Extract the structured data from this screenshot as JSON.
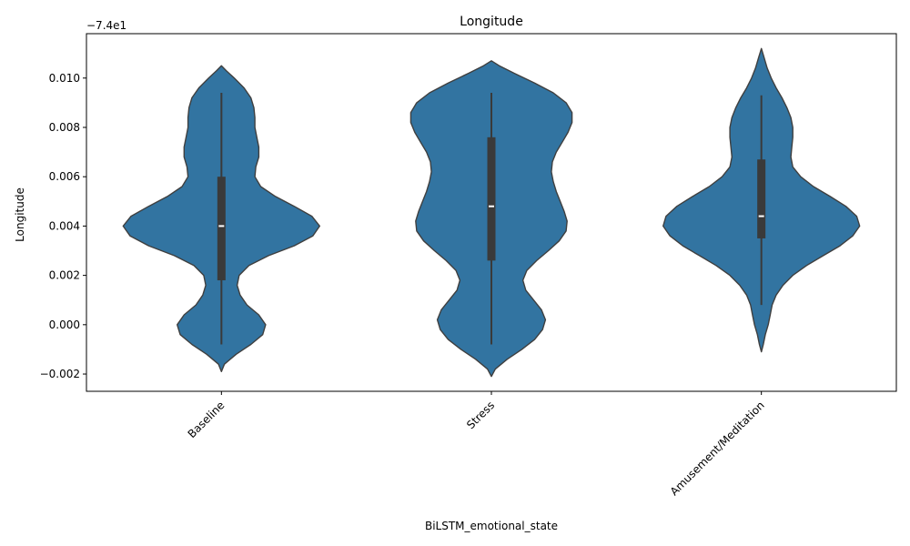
{
  "chart_data": {
    "type": "violin",
    "title": "Longitude ",
    "xlabel": "BiLSTM_emotional_state",
    "ylabel": "Longitude",
    "offset_text": "−7.4e1",
    "ylim": [
      -0.0027,
      0.0118
    ],
    "yticks": [
      -0.002,
      0.0,
      0.002,
      0.004,
      0.006,
      0.008,
      0.01
    ],
    "ytick_labels": [
      "−0.002",
      "0.000",
      "0.002",
      "0.004",
      "0.006",
      "0.008",
      "0.010"
    ],
    "categories": [
      "Baseline",
      "Stress",
      "Amusement/Meditation"
    ],
    "fill_color": "#3274a1",
    "edge_color": "#3f3f3f",
    "box_color": "#3a3a3a",
    "median_color": "#ffffff",
    "violins": [
      {
        "category": "Baseline",
        "whisker_min": -0.0008,
        "q1": 0.0018,
        "median": 0.004,
        "q3": 0.006,
        "whisker_max": 0.0094,
        "kde_min": -0.0019,
        "kde_max": 0.0105,
        "profile": [
          [
            -0.0019,
            0.0
          ],
          [
            -0.0016,
            0.03
          ],
          [
            -0.0012,
            0.15
          ],
          [
            -0.0008,
            0.3
          ],
          [
            -0.0004,
            0.42
          ],
          [
            0.0,
            0.45
          ],
          [
            0.0004,
            0.38
          ],
          [
            0.0008,
            0.26
          ],
          [
            0.0012,
            0.19
          ],
          [
            0.0016,
            0.16
          ],
          [
            0.002,
            0.18
          ],
          [
            0.0024,
            0.28
          ],
          [
            0.0028,
            0.48
          ],
          [
            0.0032,
            0.74
          ],
          [
            0.0036,
            0.93
          ],
          [
            0.004,
            1.0
          ],
          [
            0.0044,
            0.92
          ],
          [
            0.0048,
            0.74
          ],
          [
            0.0052,
            0.55
          ],
          [
            0.0056,
            0.4
          ],
          [
            0.006,
            0.34
          ],
          [
            0.0064,
            0.35
          ],
          [
            0.0068,
            0.38
          ],
          [
            0.0072,
            0.38
          ],
          [
            0.0076,
            0.36
          ],
          [
            0.008,
            0.34
          ],
          [
            0.0084,
            0.34
          ],
          [
            0.0088,
            0.33
          ],
          [
            0.0092,
            0.3
          ],
          [
            0.0096,
            0.23
          ],
          [
            0.01,
            0.13
          ],
          [
            0.0103,
            0.05
          ],
          [
            0.0105,
            0.0
          ]
        ]
      },
      {
        "category": "Stress",
        "whisker_min": -0.0008,
        "q1": 0.0026,
        "median": 0.0048,
        "q3": 0.0076,
        "whisker_max": 0.0094,
        "kde_min": -0.0021,
        "kde_max": 0.0107,
        "profile": [
          [
            -0.0021,
            0.0
          ],
          [
            -0.0018,
            0.04
          ],
          [
            -0.0014,
            0.16
          ],
          [
            -0.001,
            0.31
          ],
          [
            -0.0006,
            0.44
          ],
          [
            -0.0002,
            0.52
          ],
          [
            0.0002,
            0.55
          ],
          [
            0.0006,
            0.51
          ],
          [
            0.001,
            0.43
          ],
          [
            0.0014,
            0.35
          ],
          [
            0.0018,
            0.32
          ],
          [
            0.0022,
            0.36
          ],
          [
            0.0026,
            0.46
          ],
          [
            0.003,
            0.58
          ],
          [
            0.0034,
            0.69
          ],
          [
            0.0038,
            0.76
          ],
          [
            0.0042,
            0.77
          ],
          [
            0.0046,
            0.74
          ],
          [
            0.005,
            0.7
          ],
          [
            0.0054,
            0.66
          ],
          [
            0.0058,
            0.63
          ],
          [
            0.0062,
            0.61
          ],
          [
            0.0066,
            0.62
          ],
          [
            0.007,
            0.66
          ],
          [
            0.0074,
            0.72
          ],
          [
            0.0078,
            0.78
          ],
          [
            0.0082,
            0.82
          ],
          [
            0.0086,
            0.82
          ],
          [
            0.009,
            0.76
          ],
          [
            0.0094,
            0.63
          ],
          [
            0.0098,
            0.44
          ],
          [
            0.0102,
            0.23
          ],
          [
            0.0105,
            0.08
          ],
          [
            0.0107,
            0.0
          ]
        ]
      },
      {
        "category": "Amusement/Meditation",
        "whisker_min": 0.0008,
        "q1": 0.0035,
        "median": 0.0044,
        "q3": 0.0067,
        "whisker_max": 0.0093,
        "kde_min": -0.0011,
        "kde_max": 0.0112,
        "profile": [
          [
            -0.0011,
            0.0
          ],
          [
            -0.0008,
            0.02
          ],
          [
            -0.0004,
            0.04
          ],
          [
            0.0,
            0.07
          ],
          [
            0.0004,
            0.09
          ],
          [
            0.0008,
            0.11
          ],
          [
            0.0012,
            0.15
          ],
          [
            0.0016,
            0.22
          ],
          [
            0.002,
            0.32
          ],
          [
            0.0024,
            0.46
          ],
          [
            0.0028,
            0.63
          ],
          [
            0.0032,
            0.8
          ],
          [
            0.0036,
            0.93
          ],
          [
            0.004,
            1.0
          ],
          [
            0.0044,
            0.97
          ],
          [
            0.0048,
            0.86
          ],
          [
            0.0052,
            0.7
          ],
          [
            0.0056,
            0.53
          ],
          [
            0.006,
            0.4
          ],
          [
            0.0064,
            0.32
          ],
          [
            0.0068,
            0.3
          ],
          [
            0.0072,
            0.31
          ],
          [
            0.0076,
            0.32
          ],
          [
            0.008,
            0.32
          ],
          [
            0.0084,
            0.3
          ],
          [
            0.0088,
            0.26
          ],
          [
            0.0092,
            0.21
          ],
          [
            0.0096,
            0.15
          ],
          [
            0.01,
            0.1
          ],
          [
            0.0104,
            0.06
          ],
          [
            0.0108,
            0.03
          ],
          [
            0.0112,
            0.0
          ]
        ]
      }
    ],
    "grid": false,
    "legend": "none"
  }
}
